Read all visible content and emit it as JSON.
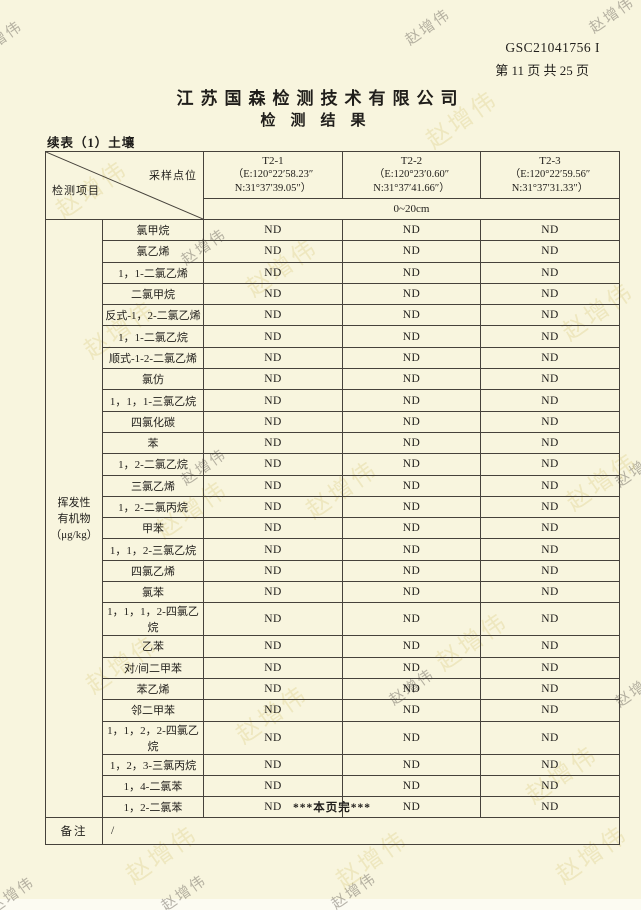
{
  "page": {
    "report_number": "GSC21041756 I",
    "page_indicator": "第 11 页 共 25 页",
    "company_name": "江苏国森检测技术有限公司",
    "report_title": "检测结果",
    "table_caption": "续表（1）土壤",
    "footer_text": "***本页完***",
    "watermark_text": "赵增伟"
  },
  "table": {
    "corner": {
      "top_label": "采样点位",
      "bottom_label": "检测项目"
    },
    "points": [
      {
        "name": "T2-1",
        "coord_e": "（E:120°22′58.23″",
        "coord_n": "N:31°37′39.05″）"
      },
      {
        "name": "T2-2",
        "coord_e": "（E:120°23′0.60″",
        "coord_n": "N:31°37′41.66″）"
      },
      {
        "name": "T2-3",
        "coord_e": "（E:120°22′59.56″",
        "coord_n": "N:31°37′31.33″）"
      }
    ],
    "depth_label": "0~20cm",
    "group_label_lines": [
      "挥发性",
      "有机物",
      "（μg/kg）"
    ],
    "rows": [
      {
        "name": "氯甲烷",
        "values": [
          "ND",
          "ND",
          "ND"
        ]
      },
      {
        "name": "氯乙烯",
        "values": [
          "ND",
          "ND",
          "ND"
        ]
      },
      {
        "name": "1，1-二氯乙烯",
        "values": [
          "ND",
          "ND",
          "ND"
        ]
      },
      {
        "name": "二氯甲烷",
        "values": [
          "ND",
          "ND",
          "ND"
        ]
      },
      {
        "name": "反式-1，2-二氯乙烯",
        "values": [
          "ND",
          "ND",
          "ND"
        ]
      },
      {
        "name": "1，1-二氯乙烷",
        "values": [
          "ND",
          "ND",
          "ND"
        ]
      },
      {
        "name": "顺式-1-2-二氯乙烯",
        "values": [
          "ND",
          "ND",
          "ND"
        ]
      },
      {
        "name": "氯仿",
        "values": [
          "ND",
          "ND",
          "ND"
        ]
      },
      {
        "name": "1，1，1-三氯乙烷",
        "values": [
          "ND",
          "ND",
          "ND"
        ]
      },
      {
        "name": "四氯化碳",
        "values": [
          "ND",
          "ND",
          "ND"
        ]
      },
      {
        "name": "苯",
        "values": [
          "ND",
          "ND",
          "ND"
        ]
      },
      {
        "name": "1，2-二氯乙烷",
        "values": [
          "ND",
          "ND",
          "ND"
        ]
      },
      {
        "name": "三氯乙烯",
        "values": [
          "ND",
          "ND",
          "ND"
        ]
      },
      {
        "name": "1，2-二氯丙烷",
        "values": [
          "ND",
          "ND",
          "ND"
        ]
      },
      {
        "name": "甲苯",
        "values": [
          "ND",
          "ND",
          "ND"
        ]
      },
      {
        "name": "1，1，2-三氯乙烷",
        "values": [
          "ND",
          "ND",
          "ND"
        ]
      },
      {
        "name": "四氯乙烯",
        "values": [
          "ND",
          "ND",
          "ND"
        ]
      },
      {
        "name": "氯苯",
        "values": [
          "ND",
          "ND",
          "ND"
        ]
      },
      {
        "name": "1，1，1，2-四氯乙烷",
        "values": [
          "ND",
          "ND",
          "ND"
        ]
      },
      {
        "name": "乙苯",
        "values": [
          "ND",
          "ND",
          "ND"
        ]
      },
      {
        "name": "对/间二甲苯",
        "values": [
          "ND",
          "ND",
          "ND"
        ]
      },
      {
        "name": "苯乙烯",
        "values": [
          "ND",
          "ND",
          "ND"
        ]
      },
      {
        "name": "邻二甲苯",
        "values": [
          "ND",
          "ND",
          "ND"
        ]
      },
      {
        "name": "1，1，2，2-四氯乙烷",
        "values": [
          "ND",
          "ND",
          "ND"
        ]
      },
      {
        "name": "1，2，3-三氯丙烷",
        "values": [
          "ND",
          "ND",
          "ND"
        ]
      },
      {
        "name": "1，4-二氯苯",
        "values": [
          "ND",
          "ND",
          "ND"
        ]
      },
      {
        "name": "1，2-二氯苯",
        "values": [
          "ND",
          "ND",
          "ND"
        ]
      }
    ],
    "note_label": "备注",
    "note_value": "/"
  },
  "colors": {
    "paper_background": "#f8f5de",
    "table_border": "#46423b",
    "text": "#201e1b",
    "watermark_gray": "#7d7870",
    "watermark_yellow": "#d6c678"
  }
}
